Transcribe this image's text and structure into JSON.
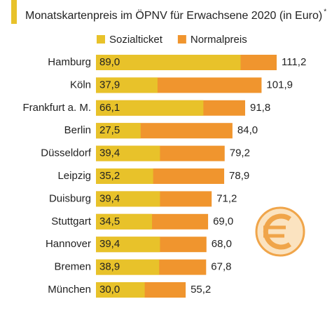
{
  "chart_data": {
    "type": "bar",
    "subtitle": "Monatskartenpreis im ÖPNV für Erwachsene 2020 (in Euro)",
    "footnote_marker": "*",
    "categories": [
      "Hamburg",
      "Köln",
      "Frankfurt a. M.",
      "Berlin",
      "Düsseldorf",
      "Leipzig",
      "Duisburg",
      "Stuttgart",
      "Hannover",
      "Bremen",
      "München"
    ],
    "series": [
      {
        "name": "Sozialticket",
        "color": "#e8c22a",
        "values": [
          89.0,
          37.9,
          66.1,
          27.5,
          39.4,
          35.2,
          39.4,
          34.5,
          39.4,
          38.9,
          30.0
        ],
        "value_labels": [
          "89,0",
          "37,9",
          "66,1",
          "27,5",
          "39,4",
          "35,2",
          "39,4",
          "34,5",
          "39,4",
          "38,9",
          "30,0"
        ]
      },
      {
        "name": "Normalpreis",
        "color": "#f0952e",
        "values": [
          111.2,
          101.9,
          91.8,
          84.0,
          79.2,
          78.9,
          71.2,
          69.0,
          68.0,
          67.8,
          55.2
        ],
        "value_labels": [
          "111,2",
          "101,9",
          "91,8",
          "84,0",
          "79,2",
          "78,9",
          "71,2",
          "69,0",
          "68,0",
          "67,8",
          "55,2"
        ]
      }
    ]
  }
}
